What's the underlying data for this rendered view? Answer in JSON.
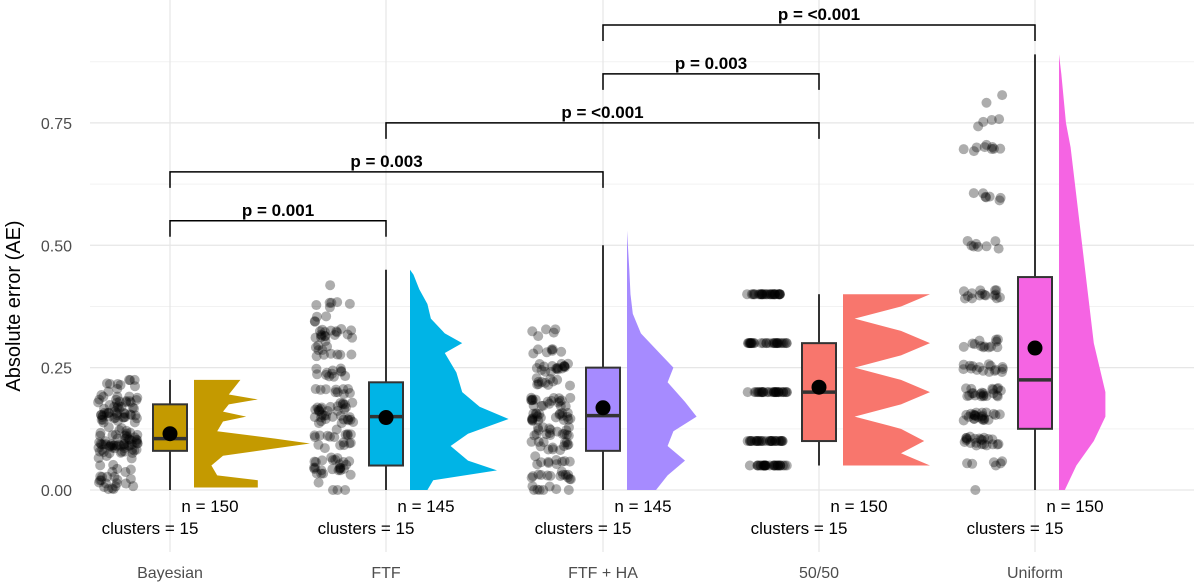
{
  "chart_data": {
    "type": "raincloud",
    "title": "",
    "xlabel": "",
    "ylabel": "Absolute error (AE)",
    "ylim": [
      0,
      0.9
    ],
    "y_ticks": [
      0.0,
      0.25,
      0.5,
      0.75
    ],
    "y_tick_labels": [
      "0.00",
      "0.25",
      "0.50",
      "0.75"
    ],
    "grid": true,
    "legend": "none",
    "categories": [
      "Bayesian",
      "FTF",
      "FTF + HA",
      "50/50",
      "Uniform"
    ],
    "groups": [
      {
        "name": "Bayesian",
        "color": "#C49A00",
        "n_label": "n = 150",
        "clusters_label": "clusters = 15",
        "box": {
          "lower_whisker": 0.0,
          "q1": 0.08,
          "median": 0.105,
          "q3": 0.175,
          "upper_whisker": 0.225
        },
        "mean": 0.115,
        "density_max": 0.225,
        "density": [
          [
            0.005,
            0.55
          ],
          [
            0.02,
            0.55
          ],
          [
            0.03,
            0.2
          ],
          [
            0.05,
            0.15
          ],
          [
            0.07,
            0.25
          ],
          [
            0.085,
            0.7
          ],
          [
            0.095,
            1.0
          ],
          [
            0.105,
            0.7
          ],
          [
            0.12,
            0.2
          ],
          [
            0.14,
            0.25
          ],
          [
            0.15,
            0.45
          ],
          [
            0.16,
            0.25
          ],
          [
            0.175,
            0.3
          ],
          [
            0.185,
            0.55
          ],
          [
            0.195,
            0.3
          ],
          [
            0.21,
            0.35
          ],
          [
            0.225,
            0.4
          ]
        ]
      },
      {
        "name": "FTF",
        "color": "#00B4E6",
        "n_label": "n = 145",
        "clusters_label": "clusters = 15",
        "box": {
          "lower_whisker": 0.0,
          "q1": 0.05,
          "median": 0.15,
          "q3": 0.22,
          "upper_whisker": 0.45
        },
        "mean": 0.148,
        "density_max": 0.45,
        "density": [
          [
            0.0,
            0.15
          ],
          [
            0.02,
            0.2
          ],
          [
            0.04,
            0.75
          ],
          [
            0.06,
            0.5
          ],
          [
            0.09,
            0.35
          ],
          [
            0.115,
            0.5
          ],
          [
            0.145,
            0.85
          ],
          [
            0.17,
            0.6
          ],
          [
            0.2,
            0.45
          ],
          [
            0.24,
            0.4
          ],
          [
            0.28,
            0.3
          ],
          [
            0.3,
            0.45
          ],
          [
            0.32,
            0.3
          ],
          [
            0.35,
            0.18
          ],
          [
            0.38,
            0.15
          ],
          [
            0.41,
            0.08
          ],
          [
            0.44,
            0.03
          ],
          [
            0.45,
            0.0
          ]
        ]
      },
      {
        "name": "FTF + HA",
        "color": "#A68BFF",
        "n_label": "n = 145",
        "clusters_label": "clusters = 15",
        "box": {
          "lower_whisker": 0.0,
          "q1": 0.08,
          "median": 0.152,
          "q3": 0.25,
          "upper_whisker": 0.5
        },
        "mean": 0.168,
        "density_max": 0.53,
        "density": [
          [
            0.0,
            0.25
          ],
          [
            0.03,
            0.35
          ],
          [
            0.06,
            0.5
          ],
          [
            0.09,
            0.35
          ],
          [
            0.12,
            0.4
          ],
          [
            0.15,
            0.6
          ],
          [
            0.18,
            0.5
          ],
          [
            0.22,
            0.35
          ],
          [
            0.25,
            0.4
          ],
          [
            0.28,
            0.28
          ],
          [
            0.32,
            0.12
          ],
          [
            0.36,
            0.05
          ],
          [
            0.4,
            0.03
          ],
          [
            0.45,
            0.02
          ],
          [
            0.53,
            0.0
          ]
        ]
      },
      {
        "name": "50/50",
        "color": "#F8766D",
        "n_label": "n = 150",
        "clusters_label": "clusters = 15",
        "box": {
          "lower_whisker": 0.05,
          "q1": 0.1,
          "median": 0.2,
          "q3": 0.3,
          "upper_whisker": 0.4
        },
        "mean": 0.21,
        "density_max": 0.4,
        "density": [
          [
            0.05,
            0.75
          ],
          [
            0.075,
            0.5
          ],
          [
            0.1,
            0.7
          ],
          [
            0.125,
            0.5
          ],
          [
            0.15,
            0.1
          ],
          [
            0.175,
            0.5
          ],
          [
            0.2,
            0.75
          ],
          [
            0.225,
            0.5
          ],
          [
            0.25,
            0.1
          ],
          [
            0.275,
            0.5
          ],
          [
            0.3,
            0.75
          ],
          [
            0.325,
            0.5
          ],
          [
            0.35,
            0.1
          ],
          [
            0.375,
            0.5
          ],
          [
            0.4,
            0.75
          ]
        ]
      },
      {
        "name": "Uniform",
        "color": "#F564E3",
        "n_label": "n = 150",
        "clusters_label": "clusters = 15",
        "box": {
          "lower_whisker": 0.0,
          "q1": 0.125,
          "median": 0.225,
          "q3": 0.435,
          "upper_whisker": 0.89
        },
        "mean": 0.29,
        "density_max": 0.89,
        "density": [
          [
            0.0,
            0.05
          ],
          [
            0.05,
            0.15
          ],
          [
            0.1,
            0.3
          ],
          [
            0.15,
            0.4
          ],
          [
            0.2,
            0.4
          ],
          [
            0.25,
            0.35
          ],
          [
            0.3,
            0.3
          ],
          [
            0.4,
            0.25
          ],
          [
            0.5,
            0.2
          ],
          [
            0.6,
            0.15
          ],
          [
            0.7,
            0.1
          ],
          [
            0.75,
            0.06
          ],
          [
            0.8,
            0.04
          ],
          [
            0.85,
            0.02
          ],
          [
            0.89,
            0.0
          ]
        ]
      }
    ],
    "comparisons": [
      {
        "from": "Bayesian",
        "to": "FTF",
        "label": "p = 0.001",
        "y": 0.55
      },
      {
        "from": "Bayesian",
        "to": "FTF + HA",
        "label": "p = 0.003",
        "y": 0.65
      },
      {
        "from": "FTF",
        "to": "50/50",
        "label": "p = <0.001",
        "y": 0.75
      },
      {
        "from": "FTF + HA",
        "to": "50/50",
        "label": "p = 0.003",
        "y": 0.85
      },
      {
        "from": "FTF + HA",
        "to": "Uniform",
        "label": "p = <0.001",
        "y": 0.95
      }
    ]
  }
}
